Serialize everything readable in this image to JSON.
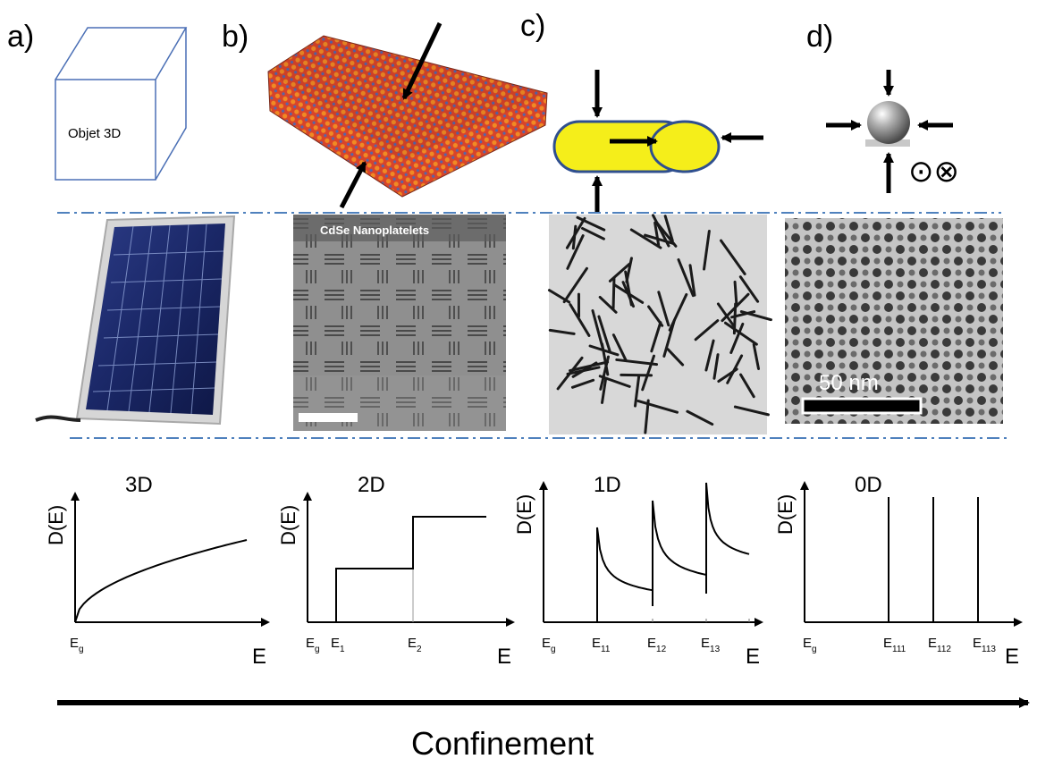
{
  "panels": {
    "a": {
      "letter": "a)",
      "cube_label": "Objet 3D"
    },
    "b": {
      "letter": "b)",
      "micrograph_title": "CdSe Nanoplatelets"
    },
    "c": {
      "letter": "c)"
    },
    "d": {
      "letter": "d)",
      "scale_bar_label": "50 nm",
      "symbols": "⊙⊗"
    }
  },
  "dos_plots": [
    {
      "id": "3d",
      "title": "3D",
      "ylabel": "D(E)",
      "xlabel": "E",
      "ticks": [
        "Eg"
      ]
    },
    {
      "id": "2d",
      "title": "2D",
      "ylabel": "D(E)",
      "xlabel": "E",
      "ticks": [
        "Eg",
        "E1",
        "E2"
      ]
    },
    {
      "id": "1d",
      "title": "1D",
      "ylabel": "D(E)",
      "xlabel": "E",
      "ticks": [
        "Eg",
        "E11",
        "E12",
        "E13"
      ]
    },
    {
      "id": "0d",
      "title": "0D",
      "ylabel": "D(E)",
      "xlabel": "E",
      "ticks": [
        "Eg",
        "E111",
        "E112",
        "E113"
      ]
    }
  ],
  "axis_label": "Confinement",
  "colors": {
    "dashed_line": "#4f81bd",
    "cube_edge": "#4a6fb5",
    "rod_fill": "#f5ee1a",
    "rod_edge": "#2f4f8f",
    "lattice_red": "#d8442a",
    "lattice_orange": "#f08a24",
    "panel_blue": "#1d2d6b"
  }
}
